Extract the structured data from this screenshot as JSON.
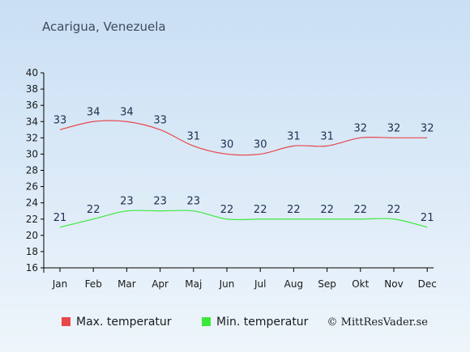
{
  "title": "Acarigua, Venezuela",
  "credit": "© MittResVader.se",
  "colors": {
    "background_top": "#c9dff4",
    "background_bottom": "#eef5fb",
    "max_line": "#e8474a",
    "min_line": "#3be83b",
    "axis": "#000000",
    "label": "#1c2f4f"
  },
  "chart_data": {
    "type": "line",
    "categories": [
      "Jan",
      "Feb",
      "Mar",
      "Apr",
      "Maj",
      "Jun",
      "Jul",
      "Aug",
      "Sep",
      "Okt",
      "Nov",
      "Dec"
    ],
    "ylim": [
      16,
      40
    ],
    "yticks": [
      16,
      18,
      20,
      22,
      24,
      26,
      28,
      30,
      32,
      34,
      36,
      38,
      40
    ],
    "grid": false,
    "legend_position": "bottom-left",
    "series": [
      {
        "name": "Max. temperatur",
        "values": [
          33,
          34,
          34,
          33,
          31,
          30,
          30,
          31,
          31,
          32,
          32,
          32
        ]
      },
      {
        "name": "Min. temperatur",
        "values": [
          21,
          22,
          23,
          23,
          23,
          22,
          22,
          22,
          22,
          22,
          22,
          21
        ]
      }
    ]
  }
}
